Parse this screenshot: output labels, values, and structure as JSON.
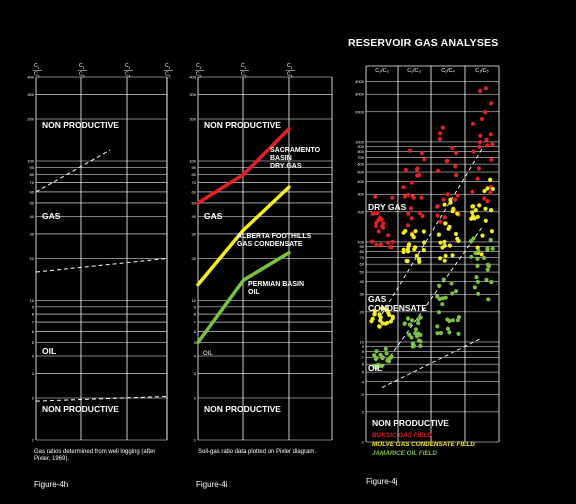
{
  "page_title": "RESERVOIR GAS ANALYSES",
  "chart_data": [
    {
      "id": "figure-4h",
      "type": "line",
      "figure_label": "Figure-4h",
      "caption": "Gas ratios determined from well logging (after Pixler, 1969).",
      "x_labels": [
        {
          "num": "C",
          "n1": "1",
          "den": "C",
          "n2": "2"
        },
        {
          "num": "C",
          "n1": "1",
          "den": "C",
          "n2": "3"
        },
        {
          "num": "C",
          "n1": "1",
          "den": "C",
          "n2": "4"
        },
        {
          "num": "C",
          "n1": "1",
          "den": "C",
          "n2": "5"
        }
      ],
      "y_scale": "log",
      "ylim": [
        1,
        400
      ],
      "y_ticks": [
        "1",
        "2",
        "3",
        "4",
        "5",
        "6",
        "7",
        "8",
        "9",
        "10",
        "20",
        "30",
        "40",
        "50",
        "60",
        "70",
        "80",
        "90",
        "100",
        "200",
        "300",
        "400"
      ],
      "zones": [
        "NON PRODUCTIVE",
        "GAS",
        "OIL",
        "NON PRODUCTIVE"
      ],
      "series": [
        {
          "style": "dashed",
          "points": [
            [
              0,
              60
            ],
            [
              1.7,
              120
            ]
          ]
        },
        {
          "style": "dashed",
          "points": [
            [
              0,
              16
            ],
            [
              3,
              20
            ]
          ]
        },
        {
          "style": "dashed",
          "points": [
            [
              0,
              1.9
            ],
            [
              3,
              2.05
            ]
          ]
        }
      ]
    },
    {
      "id": "figure-4i",
      "type": "line",
      "figure_label": "Figure-4i",
      "caption": "Soil-gas ratio data plotted on Pixler diagram.",
      "x_labels": [
        {
          "num": "C",
          "n1": "1",
          "den": "C",
          "n2": "2"
        },
        {
          "num": "C",
          "n1": "1",
          "den": "C",
          "n2": "3"
        },
        {
          "num": "C",
          "n1": "1",
          "den": "C",
          "n2": "4"
        }
      ],
      "y_scale": "log",
      "ylim": [
        1,
        400
      ],
      "y_ticks": [
        "1",
        "2",
        "3",
        "4",
        "5",
        "6",
        "7",
        "8",
        "9",
        "10",
        "20",
        "30",
        "40",
        "50",
        "60",
        "70",
        "80",
        "90",
        "100",
        "200",
        "300",
        "400"
      ],
      "zones": [
        "NON PRODUCTIVE",
        "GAS",
        "OIL",
        "NON PRODUCTIVE"
      ],
      "series": [
        {
          "name": "SACRAMENTO BASIN DRY GAS",
          "color": "#e31e24",
          "points": [
            [
              0,
              50
            ],
            [
              1,
              80
            ],
            [
              2,
              170
            ]
          ]
        },
        {
          "name": "ALBERTA FOOTHILLS GAS CONDENSATE",
          "color": "#f4ed1f",
          "points": [
            [
              0,
              13
            ],
            [
              1,
              32
            ],
            [
              2,
              65
            ]
          ]
        },
        {
          "name": "PERMIAN BASIN OIL",
          "color": "#7ac142",
          "points": [
            [
              0,
              5
            ],
            [
              1,
              14
            ],
            [
              2,
              22
            ]
          ]
        }
      ],
      "series_labels": [
        {
          "lines": [
            "SACRAMENTO",
            "BASIN",
            "DRY GAS"
          ],
          "color": "#ffffff"
        },
        {
          "lines": [
            "ALBERTA FOOTHILLS",
            "GAS CONDENSATE"
          ],
          "color": "#ffffff"
        },
        {
          "lines": [
            "PERMIAN BASIN",
            "OIL"
          ],
          "color": "#ffffff"
        }
      ],
      "oil_label": "OIL"
    },
    {
      "id": "figure-4j",
      "type": "scatter",
      "figure_label": "Figure-4j",
      "x_labels": [
        "C₁/C₂",
        "C₁/C₃",
        "C₁/C₄",
        "C₁/C₅"
      ],
      "y_scale": "log",
      "ylim": [
        1,
        5000
      ],
      "y_ticks": [
        "1",
        "2",
        "3",
        "4",
        "5",
        "6",
        "7",
        "8",
        "9",
        "10",
        "20",
        "30",
        "40",
        "50",
        "60",
        "70",
        "80",
        "90",
        "100",
        "200",
        "300",
        "400",
        "500",
        "600",
        "700",
        "800",
        "900",
        "1000",
        "2000",
        "3000",
        "4000"
      ],
      "zones": [
        "DRY GAS",
        "GAS",
        "CONDENSATE",
        "OIL",
        "NON PRODUCTIVE"
      ],
      "legend": [
        {
          "label": "BOKSIC GAS FIELD",
          "color": "#e31e24"
        },
        {
          "label": "MOLVE GAS CONDENSATE FIELD",
          "color": "#f4ed1f"
        },
        {
          "label": "JAMARICE OIL FIELD",
          "color": "#7ac142"
        }
      ],
      "series": [
        {
          "name": "BOKSIC GAS FIELD",
          "color": "#e31e24",
          "ranges": [
            [
              80,
              300
            ],
            [
              110,
              900
            ],
            [
              150,
              1800
            ],
            [
              250,
              4500
            ]
          ]
        },
        {
          "name": "MOLVE GAS CONDENSATE FIELD",
          "color": "#f4ed1f",
          "ranges": [
            [
              14,
              22
            ],
            [
              60,
              140
            ],
            [
              60,
              280
            ],
            [
              75,
              450
            ]
          ]
        },
        {
          "name": "JAMARICE OIL FIELD",
          "color": "#7ac142",
          "ranges": [
            [
              5.5,
              9
            ],
            [
              9,
              18
            ],
            [
              12,
              45
            ],
            [
              25,
              110
            ]
          ]
        }
      ],
      "boundaries": [
        {
          "style": "dashed",
          "points": [
            [
              0,
              5.5
            ],
            [
              3,
              140
            ]
          ]
        },
        {
          "style": "dashed",
          "points": [
            [
              0,
              19
            ],
            [
              3,
              850
            ]
          ]
        },
        {
          "style": "dashed",
          "points": [
            [
              0,
              3.5
            ],
            [
              3,
              11
            ]
          ]
        }
      ]
    }
  ]
}
